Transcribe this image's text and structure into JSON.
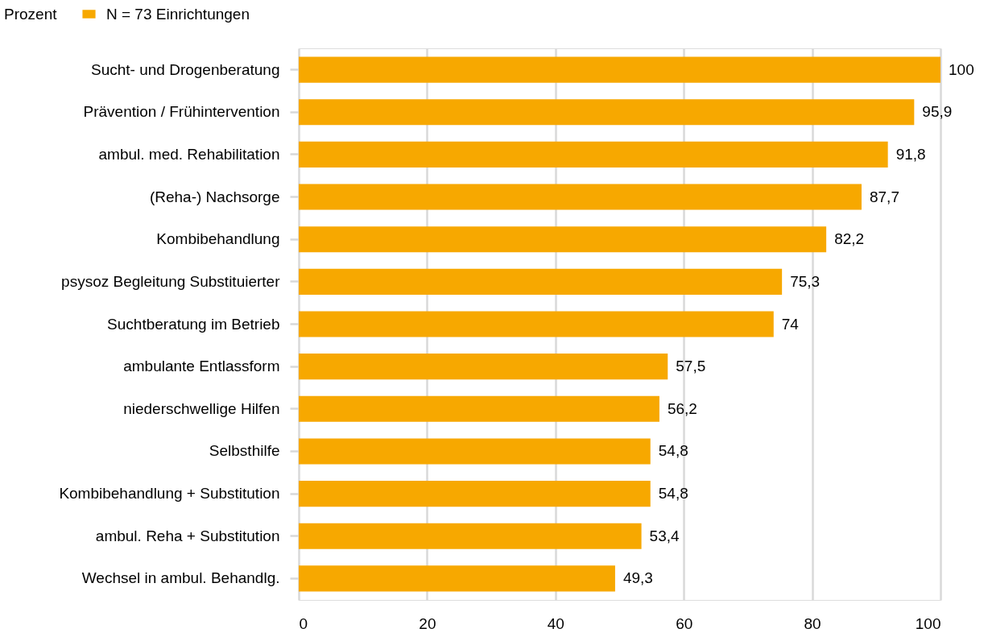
{
  "chart_data": {
    "type": "bar",
    "orientation": "horizontal",
    "legend_title": "Prozent",
    "legend": "top left",
    "categories": [
      "Sucht- und Drogenberatung",
      "Prävention / Frühintervention",
      "ambul. med. Rehabilitation",
      "(Reha-) Nachsorge",
      "Kombibehandlung",
      "psysoz Begleitung Substituierter",
      "Suchtberatung im Betrieb",
      "ambulante Entlassform",
      "niederschwellige Hilfen",
      "Selbsthilfe",
      "Kombibehandlung + Substitution",
      "ambul. Reha + Substitution",
      "Wechsel in ambul. Behandlg."
    ],
    "series": [
      {
        "name": "N = 73 Einrichtungen",
        "color": "#f7a800",
        "values": [
          100,
          95.9,
          91.8,
          87.7,
          82.2,
          75.3,
          74,
          57.5,
          56.2,
          54.8,
          54.8,
          53.4,
          49.3
        ],
        "value_labels": [
          "100",
          "95,9",
          "91,8",
          "87,7",
          "82,2",
          "75,3",
          "74",
          "57,5",
          "56,2",
          "54,8",
          "54,8",
          "53,4",
          "49,3"
        ]
      }
    ],
    "xlim": [
      0,
      100
    ],
    "xticks": [
      0,
      20,
      40,
      60,
      80,
      100
    ],
    "grid": "x"
  }
}
